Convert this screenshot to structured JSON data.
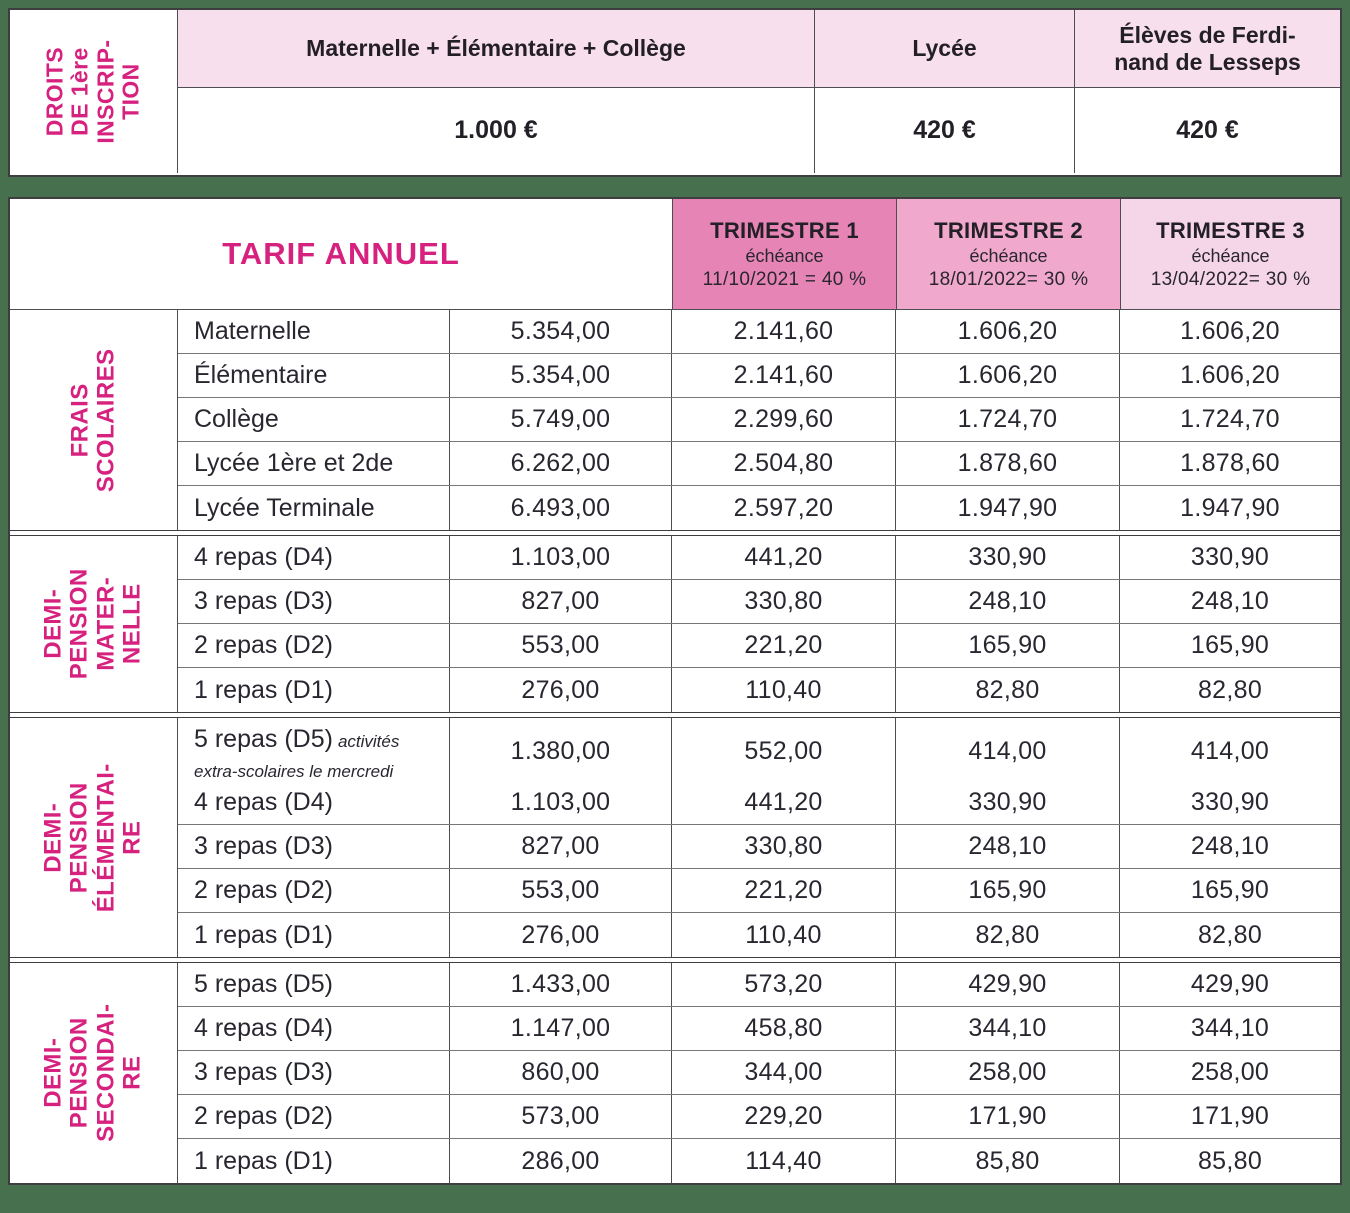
{
  "colors": {
    "background_green": "#47704F",
    "accent_pink_text": "#D6217E",
    "pale_pink_header": "#F8DFEE",
    "trimestre1_pink": "#E685B5",
    "trimestre2_pink": "#F1A8CD",
    "trimestre3_pink": "#F8E0EE",
    "text_dark": "#231F26"
  },
  "top_table": {
    "row_label": "DROITS\nDE 1ère\nINSCRIP-\nTION",
    "columns": [
      {
        "header": "Maternelle + Élémentaire + Collège",
        "value": "1.000 €"
      },
      {
        "header": "Lycée",
        "value": "420 €"
      },
      {
        "header": "Élèves de Ferdi-\nnand de Lesseps",
        "value": "420 €"
      }
    ]
  },
  "main_table": {
    "title": "TARIF ANNUEL",
    "trimester_headers": [
      {
        "name": "TRIMESTRE 1",
        "echeance_label": "échéance",
        "date": "11/10/2021 = 40 %"
      },
      {
        "name": "TRIMESTRE 2",
        "echeance_label": "échéance",
        "date": "18/01/2022= 30 %"
      },
      {
        "name": "TRIMESTRE 3",
        "echeance_label": "échéance",
        "date": "13/04/2022= 30 %"
      }
    ],
    "sections": [
      {
        "label": "FRAIS\nSCOLAIRES",
        "rows": [
          {
            "label": "Maternelle",
            "annual": "5.354,00",
            "t1": "2.141,60",
            "t2": "1.606,20",
            "t3": "1.606,20"
          },
          {
            "label": "Élémentaire",
            "annual": "5.354,00",
            "t1": "2.141,60",
            "t2": "1.606,20",
            "t3": "1.606,20"
          },
          {
            "label": "Collège",
            "annual": "5.749,00",
            "t1": "2.299,60",
            "t2": "1.724,70",
            "t3": "1.724,70"
          },
          {
            "label": "Lycée 1ère et 2de",
            "annual": "6.262,00",
            "t1": "2.504,80",
            "t2": "1.878,60",
            "t3": "1.878,60"
          },
          {
            "label": "Lycée Terminale",
            "annual": "6.493,00",
            "t1": "2.597,20",
            "t2": "1.947,90",
            "t3": "1.947,90"
          }
        ]
      },
      {
        "label": "DEMI-\nPENSION\nMATER-\nNELLE",
        "rows": [
          {
            "label": "4 repas (D4)",
            "annual": "1.103,00",
            "t1": "441,20",
            "t2": "330,90",
            "t3": "330,90"
          },
          {
            "label": "3 repas (D3)",
            "annual": "827,00",
            "t1": "330,80",
            "t2": "248,10",
            "t3": "248,10"
          },
          {
            "label": "2 repas (D2)",
            "annual": "553,00",
            "t1": "221,20",
            "t2": "165,90",
            "t3": "165,90"
          },
          {
            "label": "1 repas (D1)",
            "annual": "276,00",
            "t1": "110,40",
            "t2": "82,80",
            "t3": "82,80"
          }
        ]
      },
      {
        "label": "DEMI-\nPENSION\nÉLÉMENTAI-\nRE",
        "rows": [
          {
            "label": "5 repas (D5)",
            "note": "activités extra-scolaires le mercredi",
            "annual": "1.380,00",
            "t1": "552,00",
            "t2": "414,00",
            "t3": "414,00"
          },
          {
            "label": "4 repas (D4)",
            "annual": "1.103,00",
            "t1": "441,20",
            "t2": "330,90",
            "t3": "330,90"
          },
          {
            "label": "3 repas (D3)",
            "annual": "827,00",
            "t1": "330,80",
            "t2": "248,10",
            "t3": "248,10"
          },
          {
            "label": "2 repas (D2)",
            "annual": "553,00",
            "t1": "221,20",
            "t2": "165,90",
            "t3": "165,90"
          },
          {
            "label": "1 repas (D1)",
            "annual": "276,00",
            "t1": "110,40",
            "t2": "82,80",
            "t3": "82,80"
          }
        ]
      },
      {
        "label": "DEMI-\nPENSION\nSECONDAI-\nRE",
        "rows": [
          {
            "label": "5 repas (D5)",
            "annual": "1.433,00",
            "t1": "573,20",
            "t2": "429,90",
            "t3": "429,90"
          },
          {
            "label": "4 repas (D4)",
            "annual": "1.147,00",
            "t1": "458,80",
            "t2": "344,10",
            "t3": "344,10"
          },
          {
            "label": "3 repas (D3)",
            "annual": "860,00",
            "t1": "344,00",
            "t2": "258,00",
            "t3": "258,00"
          },
          {
            "label": "2 repas (D2)",
            "annual": "573,00",
            "t1": "229,20",
            "t2": "171,90",
            "t3": "171,90"
          },
          {
            "label": "1 repas (D1)",
            "annual": "286,00",
            "t1": "114,40",
            "t2": "85,80",
            "t3": "85,80"
          }
        ]
      }
    ]
  }
}
